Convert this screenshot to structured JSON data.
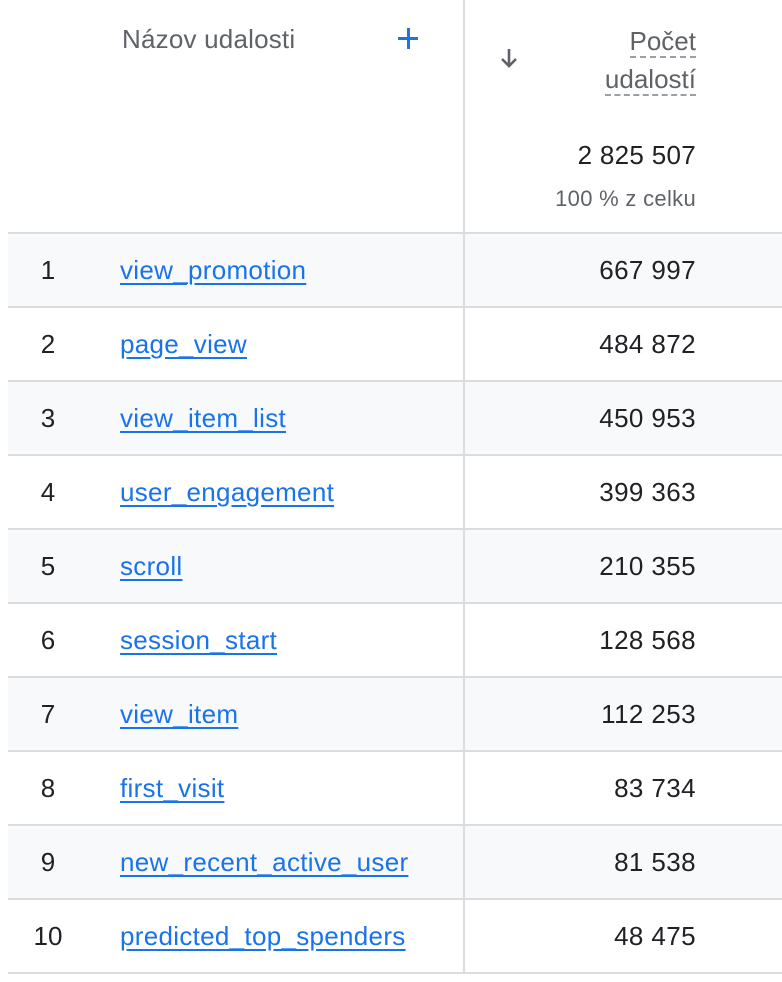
{
  "header": {
    "event_name_label": "Názov udalosti",
    "metric_label_line1": "Počet",
    "metric_label_line2": "udalostí",
    "total": "2 825 507",
    "total_pct": "100 % z celku"
  },
  "icons": {
    "add": "plus-icon",
    "sort": "arrow-down-icon"
  },
  "colors": {
    "link": "#1a73e8",
    "shaded_row": "#f8f9fa",
    "divider": "#dadce0"
  },
  "rows": [
    {
      "index": "1",
      "name": "view_promotion",
      "value": "667 997"
    },
    {
      "index": "2",
      "name": "page_view",
      "value": "484 872"
    },
    {
      "index": "3",
      "name": "view_item_list",
      "value": "450 953"
    },
    {
      "index": "4",
      "name": "user_engagement",
      "value": "399 363"
    },
    {
      "index": "5",
      "name": "scroll",
      "value": "210 355"
    },
    {
      "index": "6",
      "name": "session_start",
      "value": "128 568"
    },
    {
      "index": "7",
      "name": "view_item",
      "value": "112 253"
    },
    {
      "index": "8",
      "name": "first_visit",
      "value": "83 734"
    },
    {
      "index": "9",
      "name": "new_recent_active_user",
      "value": "81 538"
    },
    {
      "index": "10",
      "name": "predicted_top_spenders",
      "value": "48 475"
    }
  ]
}
